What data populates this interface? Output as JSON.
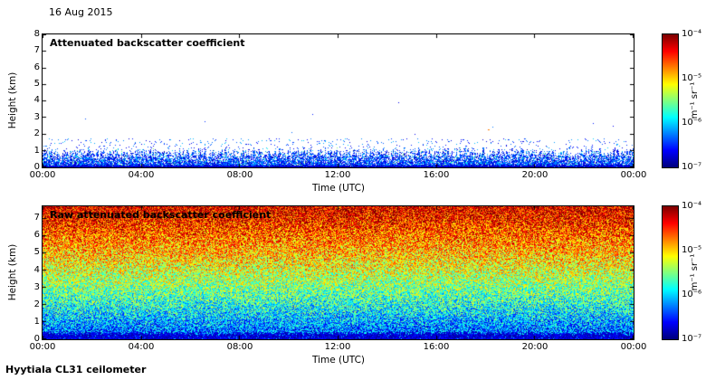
{
  "header": {
    "date_label": "16 Aug 2015"
  },
  "footer": {
    "instrument_label": "Hyytiala CL31 ceilometer"
  },
  "chart_data": [
    {
      "type": "heatmap",
      "panel": "top",
      "title": "Attenuated backscatter coefficient",
      "xlabel": "Time (UTC)",
      "ylabel": "Height (km)",
      "x_ticks": [
        "00:00",
        "04:00",
        "08:00",
        "12:00",
        "16:00",
        "20:00",
        "00:00"
      ],
      "x_tick_hours": [
        0,
        4,
        8,
        12,
        16,
        20,
        24
      ],
      "xlim_hours": [
        0,
        24
      ],
      "y_ticks": [
        "0",
        "1",
        "2",
        "3",
        "4",
        "5",
        "6",
        "7",
        "8"
      ],
      "ylim": [
        0,
        8
      ],
      "grid": false,
      "colorbar": {
        "colormap": "jet",
        "scale": "log",
        "position": "right",
        "ticks": [
          "10⁻⁴",
          "10⁻⁵",
          "10⁻⁶",
          "10⁻⁷"
        ],
        "min": 1e-07,
        "max": 0.0001,
        "unit": "m⁻¹ sr⁻¹"
      },
      "layers": {
        "boundary_layer_top_km": 0.9,
        "speckle_top_km": 1.7,
        "aerosol_speck": {
          "hour": 18.1,
          "height_km": 2.3
        }
      },
      "summary": "Clear day: backscatter confined to a dense blue boundary-layer band below ~0.9 km lasting all 24 h, sparse blue noise speckle just above, white (no signal) elsewhere."
    },
    {
      "type": "heatmap",
      "panel": "bottom",
      "title": "Raw attenuated backscatter coefficient",
      "xlabel": "Time (UTC)",
      "ylabel": "Height (km)",
      "x_ticks": [
        "00:00",
        "04:00",
        "08:00",
        "12:00",
        "16:00",
        "20:00",
        "00:00"
      ],
      "x_tick_hours": [
        0,
        4,
        8,
        12,
        16,
        20,
        24
      ],
      "xlim_hours": [
        0,
        24
      ],
      "y_ticks": [
        "0",
        "1",
        "2",
        "3",
        "4",
        "5",
        "6",
        "7"
      ],
      "ylim": [
        0,
        7.7
      ],
      "grid": false,
      "colorbar": {
        "colormap": "jet",
        "scale": "log",
        "position": "right",
        "ticks": [
          "10⁻⁴",
          "10⁻⁵",
          "10⁻⁶",
          "10⁻⁷"
        ],
        "min": 1e-07,
        "max": 0.0001,
        "unit": "m⁻¹ sr⁻¹"
      },
      "profile": {
        "t_surface": 0.16,
        "t_top": 0.92,
        "jitter": 0.42,
        "exponent": 0.85,
        "dark_band_km": 0.3
      },
      "summary": "Raw signal dominated by range-dependent noise speckle: dark blue near the surface grading through cyan, green and yellow to red/dark-red above ~6 km, uniform across all 24 h."
    }
  ]
}
